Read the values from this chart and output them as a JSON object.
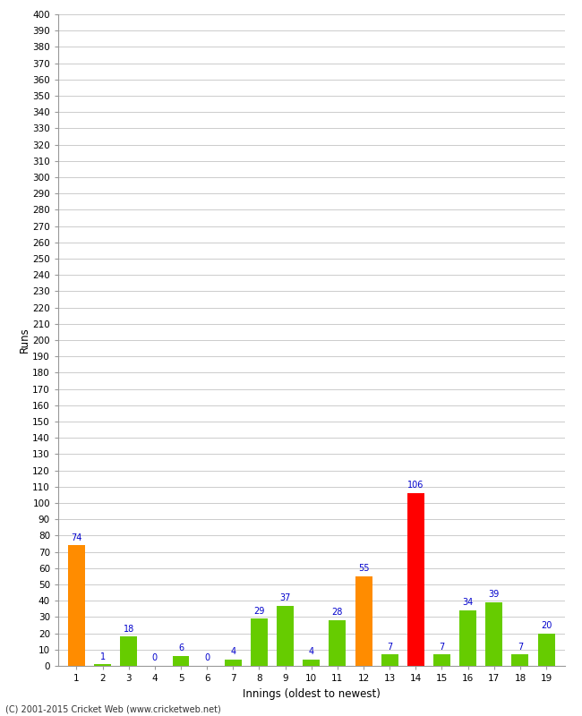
{
  "innings": [
    1,
    2,
    3,
    4,
    5,
    6,
    7,
    8,
    9,
    10,
    11,
    12,
    13,
    14,
    15,
    16,
    17,
    18,
    19
  ],
  "runs": [
    74,
    1,
    18,
    0,
    6,
    0,
    4,
    29,
    37,
    4,
    28,
    55,
    7,
    106,
    7,
    34,
    39,
    7,
    20
  ],
  "colors": [
    "#ff8c00",
    "#66cc00",
    "#66cc00",
    "#66cc00",
    "#66cc00",
    "#66cc00",
    "#66cc00",
    "#66cc00",
    "#66cc00",
    "#66cc00",
    "#66cc00",
    "#ff8c00",
    "#66cc00",
    "#ff0000",
    "#66cc00",
    "#66cc00",
    "#66cc00",
    "#66cc00",
    "#66cc00"
  ],
  "xlabel": "Innings (oldest to newest)",
  "ylabel": "Runs",
  "ylim": [
    0,
    400
  ],
  "yticks": [
    0,
    10,
    20,
    30,
    40,
    50,
    60,
    70,
    80,
    90,
    100,
    110,
    120,
    130,
    140,
    150,
    160,
    170,
    180,
    190,
    200,
    210,
    220,
    230,
    240,
    250,
    260,
    270,
    280,
    290,
    300,
    310,
    320,
    330,
    340,
    350,
    360,
    370,
    380,
    390,
    400
  ],
  "label_color": "#0000cc",
  "bg_color": "#ffffff",
  "grid_color": "#cccccc",
  "footer": "(C) 2001-2015 Cricket Web (www.cricketweb.net)",
  "bar_width": 0.65
}
